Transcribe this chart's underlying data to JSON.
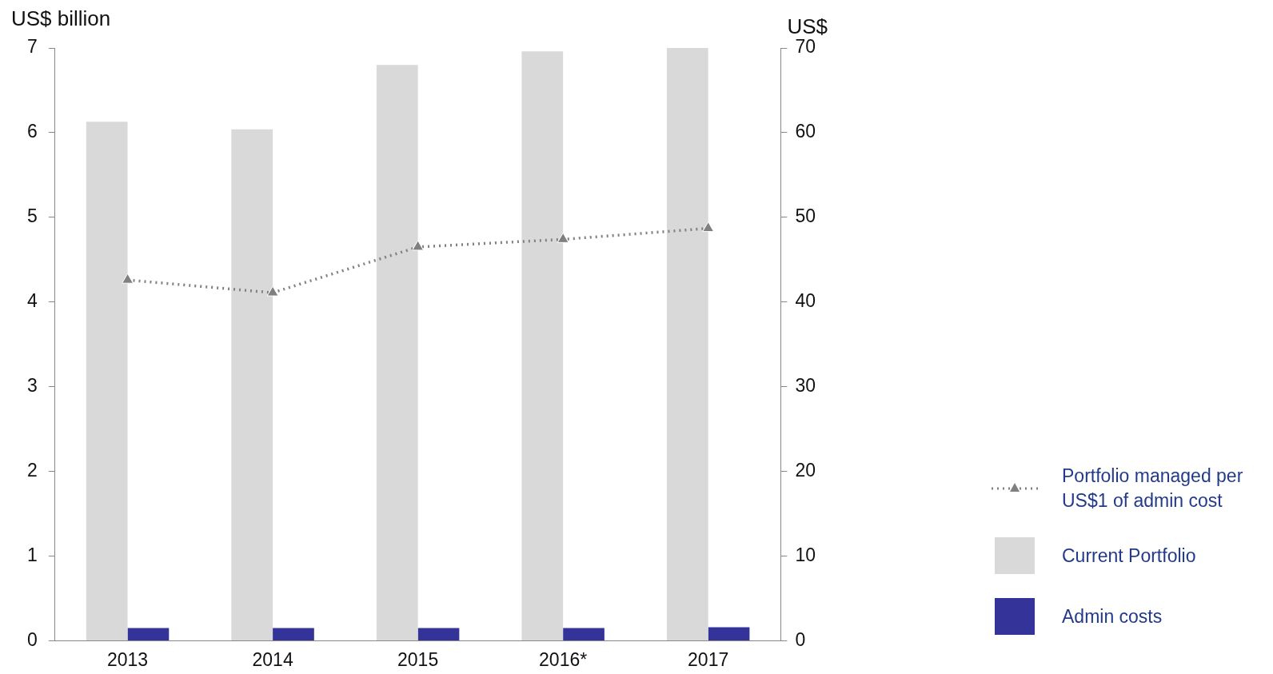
{
  "chart_data": {
    "type": "bar",
    "ylabel": "US$ billion",
    "y2label": "US$",
    "categories": [
      "2013",
      "2014",
      "2015",
      "2016*",
      "2017"
    ],
    "series": [
      {
        "name": "Portfolio managed per US$1 of admin cost",
        "type": "line",
        "axis": "y2",
        "color": "#808080",
        "values": [
          42.6,
          41.1,
          46.5,
          47.4,
          48.7
        ],
        "marker": "triangle",
        "line_style": "dotted"
      },
      {
        "name": "Current Portfolio",
        "color": "#d9d9d9",
        "values": [
          6.13,
          6.04,
          6.8,
          6.96,
          7.0
        ]
      },
      {
        "name": "Admin costs",
        "color": "#333399",
        "values": [
          0.15,
          0.15,
          0.15,
          0.15,
          0.16
        ]
      }
    ],
    "ylim": [
      0,
      7
    ],
    "yticks": [
      0,
      1,
      2,
      3,
      4,
      5,
      6,
      7
    ],
    "y2lim": [
      0,
      70
    ],
    "y2ticks": [
      0,
      10,
      20,
      30,
      40,
      50,
      60,
      70
    ],
    "grid": false,
    "legend": "right"
  }
}
